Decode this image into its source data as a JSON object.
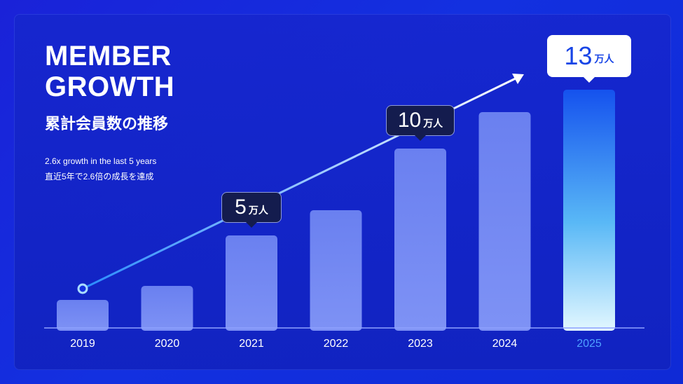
{
  "title_line1": "MEMBER",
  "title_line2": "GROWTH",
  "subtitle": "累計会員数の推移",
  "note_en": "2.6x growth in the last 5 years",
  "note_ja": "直近5年で2.6倍の成長を達成",
  "colors": {
    "background": "#1330e0",
    "bar": "#6f86f2",
    "bar_highlight_top": "#1552ee",
    "bar_highlight_bottom": "#e2f7ff",
    "highlight_label": "#4fa0ff",
    "axis_label": "#ffffff"
  },
  "callouts": [
    {
      "category": "2021",
      "number": "5",
      "unit": "万人"
    },
    {
      "category": "2023",
      "number": "10",
      "unit": "万人"
    },
    {
      "category": "2025",
      "number": "13",
      "unit": "万人"
    }
  ],
  "chart_data": {
    "type": "bar",
    "categories": [
      "2019",
      "2020",
      "2021",
      "2022",
      "2023",
      "2024",
      "2025"
    ],
    "values": [
      5,
      7.5,
      16.5,
      21,
      32,
      38.5,
      42.5
    ],
    "highlight": "2025",
    "ylim": [
      0,
      50
    ],
    "grid": false,
    "legend": "none",
    "trend_arrow": true
  }
}
